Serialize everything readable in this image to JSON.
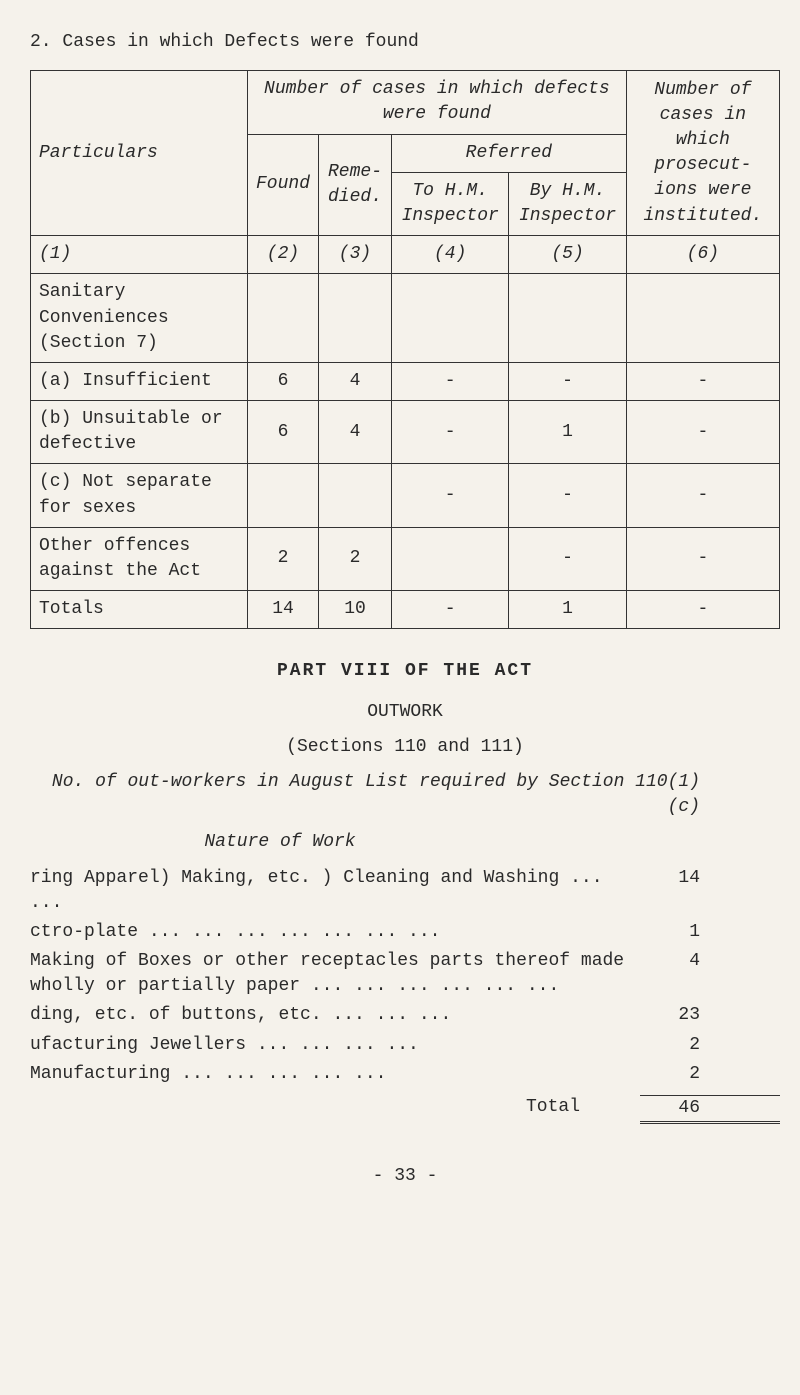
{
  "heading": "2. Cases in which Defects were found",
  "table": {
    "header_top": "Number of cases in which defects were found",
    "header_referred": "Referred",
    "header_particulars": "Particulars",
    "header_found": "Found",
    "header_remedied": "Reme-died.",
    "header_tohm": "To H.M. Inspector",
    "header_byhm": "By H.M. Inspector",
    "header_prosecutions": "Number of cases in which prosecut-ions were instituted.",
    "col_nums": [
      "(1)",
      "(2)",
      "(3)",
      "(4)",
      "(5)",
      "(6)"
    ],
    "rows": [
      {
        "label": "Sanitary Conveniences (Section 7)",
        "found": "",
        "remedied": "",
        "tohm": "",
        "byhm": "",
        "pros": ""
      },
      {
        "label": "(a) Insufficient",
        "found": "6",
        "remedied": "4",
        "tohm": "-",
        "byhm": "-",
        "pros": "-"
      },
      {
        "label": "(b) Unsuitable or defective",
        "found": "6",
        "remedied": "4",
        "tohm": "-",
        "byhm": "1",
        "pros": "-"
      },
      {
        "label": "(c) Not separate for sexes",
        "found": "",
        "remedied": "",
        "tohm": "-",
        "byhm": "-",
        "pros": "-"
      },
      {
        "label": "Other offences against the Act",
        "found": "2",
        "remedied": "2",
        "tohm": "",
        "byhm": "-",
        "pros": "-"
      },
      {
        "label": "Totals",
        "found": "14",
        "remedied": "10",
        "tohm": "-",
        "byhm": "1",
        "pros": "-"
      }
    ]
  },
  "part_title": "PART VIII OF THE ACT",
  "outwork_title": "OUTWORK",
  "sections_ref": "(Sections 110 and 111)",
  "outworkers_header": "No. of out-workers in August List required by Section 110(1)(c)",
  "nature_of_work": "Nature of Work",
  "work_items": [
    {
      "label": "ring Apparel) Making, etc.\n           ) Cleaning and Washing ...   ...",
      "value": "14"
    },
    {
      "label": "ctro-plate ...   ...   ...   ...   ...   ...   ...",
      "value": "1"
    },
    {
      "label": "Making of Boxes or other receptacles parts thereof made wholly or partially paper   ...   ...   ...   ...   ...   ...",
      "value": "4"
    },
    {
      "label": "ding, etc. of buttons, etc.   ...   ...   ...",
      "value": "23"
    },
    {
      "label": "ufacturing Jewellers   ...   ...   ...   ...",
      "value": "2"
    },
    {
      "label": "Manufacturing   ...   ...   ...   ...   ...",
      "value": "2"
    }
  ],
  "total_label": "Total",
  "total_value": "46",
  "page_number": "- 33 -"
}
